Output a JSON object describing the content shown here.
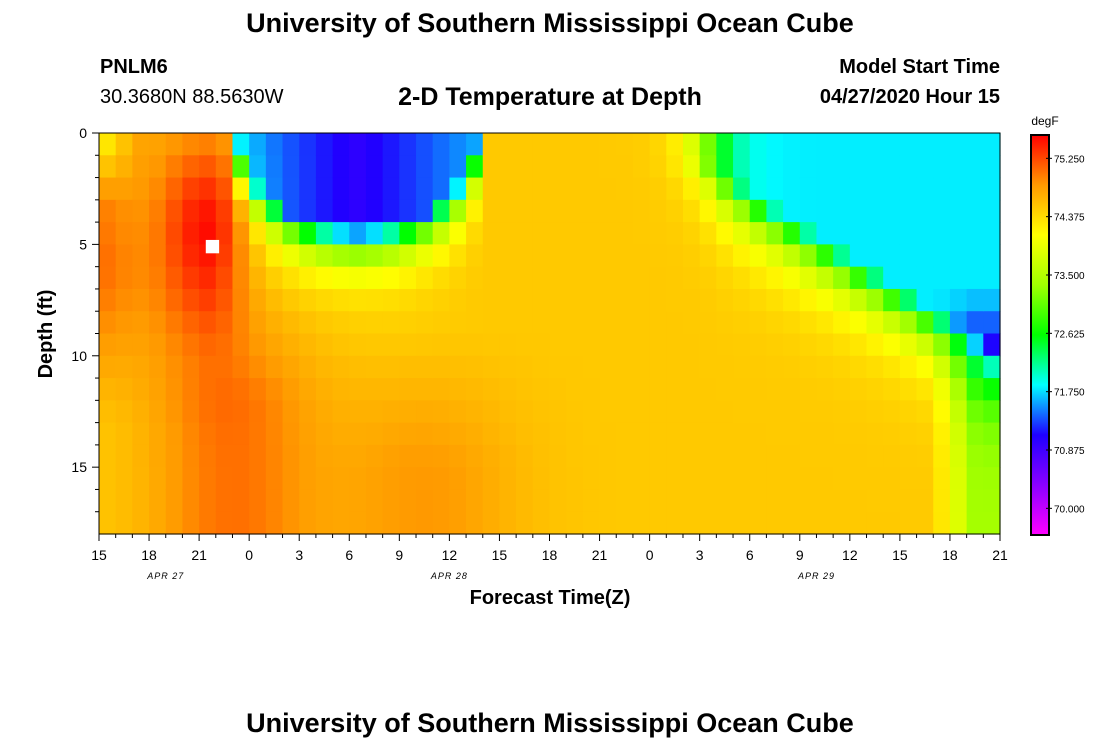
{
  "header": {
    "title": "University of Southern Mississippi Ocean Cube",
    "station_id": "PNLM6",
    "coordinates": "30.3680N 88.5630W",
    "plot_title": "2-D Temperature at Depth",
    "model_start_label": "Model Start Time",
    "model_start_value": "04/27/2020 Hour 15"
  },
  "footer": {
    "title": "University of Southern Mississippi Ocean Cube"
  },
  "chart_data": {
    "type": "heatmap",
    "title": "2-D Temperature at Depth",
    "xlabel": "Forecast Time(Z)",
    "ylabel": "Depth (ft)",
    "x_tick_labels": [
      "15",
      "18",
      "21",
      "0",
      "3",
      "6",
      "9",
      "12",
      "15",
      "18",
      "21",
      "0",
      "3",
      "6",
      "9",
      "12",
      "15",
      "18",
      "21"
    ],
    "x_date_labels": [
      {
        "label": "APR 27",
        "hour_index": 4
      },
      {
        "label": "APR 28",
        "hour_index": 21
      },
      {
        "label": "APR 29",
        "hour_index": 43
      }
    ],
    "y_tick_labels": [
      "0",
      "5",
      "10",
      "15"
    ],
    "y_ticks": [
      0,
      5,
      10,
      15
    ],
    "ylim": [
      0,
      18
    ],
    "hours_range": [
      0,
      54
    ],
    "colorbar": {
      "unit": "degF",
      "min": 69.6,
      "max": 75.6,
      "tick_labels": [
        "75.250",
        "74.375",
        "73.500",
        "72.625",
        "71.750",
        "70.875",
        "70.000"
      ],
      "ticks": [
        75.25,
        74.375,
        73.5,
        72.625,
        71.75,
        70.875,
        70.0
      ],
      "colors": [
        "#ff00ff",
        "#8a00ff",
        "#1f00ff",
        "#00ffff",
        "#00ff00",
        "#a0ff00",
        "#ffff00",
        "#ff9a00",
        "#ff0000"
      ]
    },
    "hot_spot": {
      "hours": [
        6.4,
        7.2
      ],
      "depth": [
        4.8,
        5.4
      ],
      "temperature": "above max"
    }
  }
}
